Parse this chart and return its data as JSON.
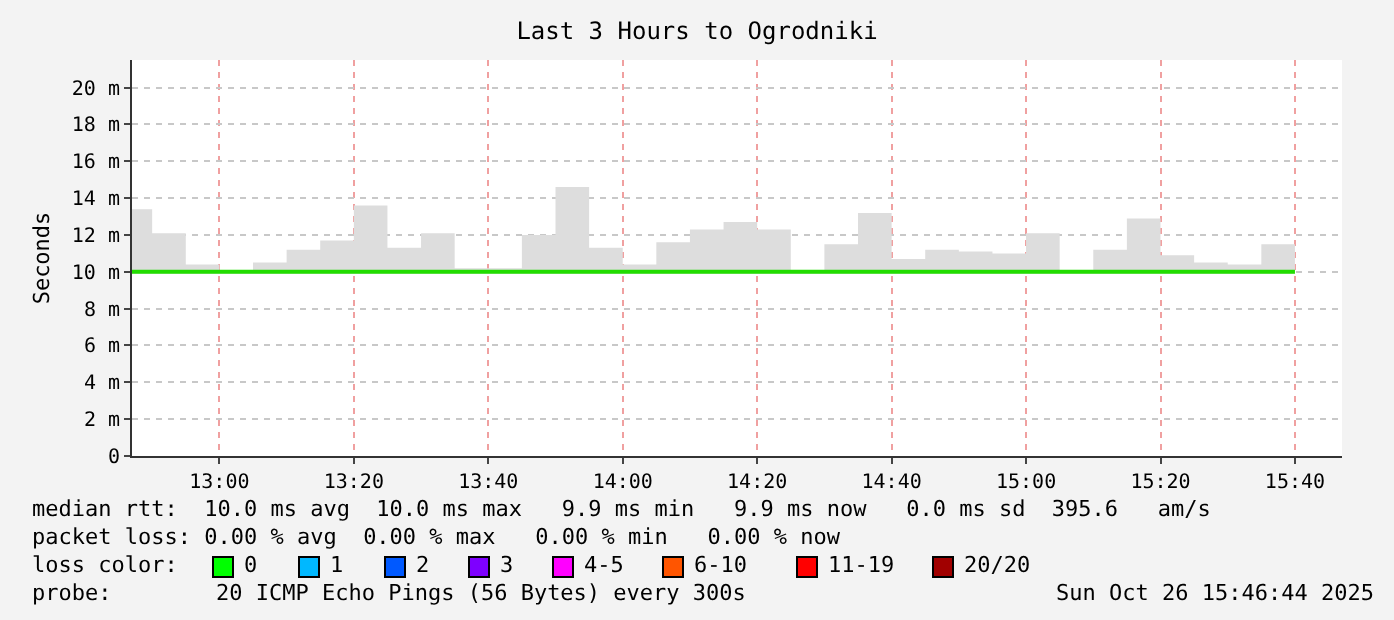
{
  "chart_data": {
    "type": "step",
    "title": "Last 3 Hours to Ogrodniki",
    "ylabel": "Seconds",
    "x": [
      "2025-10-26T12:47",
      "2025-10-26T12:50",
      "2025-10-26T12:55",
      "2025-10-26T13:00",
      "2025-10-26T13:05",
      "2025-10-26T13:10",
      "2025-10-26T13:15",
      "2025-10-26T13:20",
      "2025-10-26T13:25",
      "2025-10-26T13:30",
      "2025-10-26T13:35",
      "2025-10-26T13:40",
      "2025-10-26T13:45",
      "2025-10-26T13:50",
      "2025-10-26T13:55",
      "2025-10-26T14:00",
      "2025-10-26T14:05",
      "2025-10-26T14:10",
      "2025-10-26T14:15",
      "2025-10-26T14:20",
      "2025-10-26T14:25",
      "2025-10-26T14:30",
      "2025-10-26T14:35",
      "2025-10-26T14:40",
      "2025-10-26T14:45",
      "2025-10-26T14:50",
      "2025-10-26T14:55",
      "2025-10-26T15:00",
      "2025-10-26T15:05",
      "2025-10-26T15:10",
      "2025-10-26T15:15",
      "2025-10-26T15:20",
      "2025-10-26T15:25",
      "2025-10-26T15:30",
      "2025-10-26T15:35",
      "2025-10-26T15:40"
    ],
    "series": [
      {
        "color": "#22dd00",
        "values": [
          10.0,
          10.0,
          10.0,
          10.0,
          10.0,
          10.0,
          10.0,
          10.0,
          10.0,
          10.0,
          10.0,
          10.0,
          10.0,
          10.0,
          10.0,
          10.0,
          10.0,
          10.0,
          10.0,
          10.0,
          10.0,
          10.0,
          10.0,
          10.0,
          10.0,
          10.0,
          10.0,
          10.0,
          10.0,
          10.0,
          10.0,
          10.0,
          10.0,
          10.0,
          10.0,
          10.0
        ],
        "lower": [
          9.9,
          9.9,
          9.9,
          9.9,
          9.9,
          9.9,
          9.9,
          9.9,
          9.9,
          9.9,
          9.9,
          9.9,
          9.9,
          9.9,
          9.9,
          9.9,
          9.9,
          9.9,
          9.9,
          9.9,
          9.9,
          9.9,
          9.9,
          9.9,
          9.9,
          9.9,
          9.9,
          9.9,
          9.9,
          9.9,
          9.9,
          9.9,
          9.9,
          9.9,
          9.9,
          9.9
        ],
        "upper": [
          13.4,
          12.1,
          10.4,
          10.1,
          10.5,
          11.2,
          11.7,
          13.6,
          11.3,
          12.1,
          10.2,
          10.2,
          12.0,
          14.6,
          11.3,
          10.4,
          11.6,
          12.3,
          12.7,
          12.3,
          10.1,
          11.5,
          13.2,
          10.7,
          11.2,
          11.1,
          11.0,
          12.1,
          10.0,
          11.2,
          12.9,
          10.9,
          10.5,
          10.4,
          11.5,
          11.5
        ]
      }
    ],
    "xlim": [
      "2025-10-26T12:47",
      "2025-10-26T15:47"
    ],
    "xticks": [
      {
        "value": "2025-10-26T13:00",
        "label": "13:00"
      },
      {
        "value": "2025-10-26T13:20",
        "label": "13:20"
      },
      {
        "value": "2025-10-26T13:40",
        "label": "13:40"
      },
      {
        "value": "2025-10-26T14:00",
        "label": "14:00"
      },
      {
        "value": "2025-10-26T14:20",
        "label": "14:20"
      },
      {
        "value": "2025-10-26T14:40",
        "label": "14:40"
      },
      {
        "value": "2025-10-26T15:00",
        "label": "15:00"
      },
      {
        "value": "2025-10-26T15:20",
        "label": "15:20"
      },
      {
        "value": "2025-10-26T15:40",
        "label": "15:40"
      }
    ],
    "ylim": [
      0,
      21.5
    ],
    "yticks": [
      0,
      {
        "value": 2,
        "label": "2 m"
      },
      {
        "value": 4,
        "label": "4 m"
      },
      {
        "value": 6,
        "label": "6 m"
      },
      {
        "value": 8,
        "label": "8 m"
      },
      {
        "value": 10,
        "label": "10 m"
      },
      {
        "value": 12,
        "label": "12 m"
      },
      {
        "value": 14,
        "label": "14 m"
      },
      {
        "value": 16,
        "label": "16 m"
      },
      {
        "value": 18,
        "label": "18 m"
      },
      {
        "value": 20,
        "label": "20 m"
      }
    ],
    "grid": true,
    "annotations": [
      "median rtt:  10.0 ms avg  10.0 ms max   9.9 ms min   9.9 ms now   0.0 ms sd  395.6   am/s",
      "packet loss: 0.00 % avg  0.00 % max   0.00 % min   0.00 % now",
      "loss color:",
      "0",
      "1",
      "2",
      "3",
      "4-5",
      "6-10",
      "11-19",
      "20/20",
      "probe:",
      "20 ICMP Echo Pings (56 Bytes) every 300s",
      "Sun Oct 26 15:46:44 2025"
    ]
  }
}
